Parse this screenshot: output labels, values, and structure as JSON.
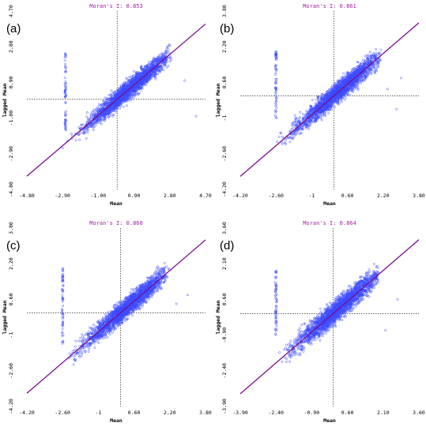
{
  "colors": {
    "points": "#3c4bff",
    "regression_line": "#7a0f8c",
    "title": "#a020a0",
    "guides": "#000000",
    "text": "#000000"
  },
  "chart_data": [
    {
      "type": "scatter",
      "panel_label": "(a)",
      "title": "Moran's I: 0.853",
      "xlabel": "Mean",
      "ylabel": "lagged Mean",
      "xlim": [
        -4.8,
        4.7
      ],
      "ylim": [
        -4.8,
        4.7
      ],
      "x_ticks": [
        "-4.80",
        "-2.90",
        "-1.00",
        "0.90",
        "2.80",
        "4.70"
      ],
      "y_ticks": [
        "-4.80",
        "-2.90",
        "-1.00",
        "0.90",
        "2.80",
        "4.70"
      ],
      "mean_x": 0.0,
      "mean_y": 0.0,
      "slope": 0.853,
      "cloud": {
        "x_min": -2.8,
        "x_max": 2.9,
        "spread": 0.5
      },
      "stripe": {
        "x": -2.75,
        "y_min": -1.7,
        "y_max": 2.5
      },
      "outliers": [
        [
          4.2,
          -0.9
        ],
        [
          3.6,
          1.0
        ],
        [
          -2.9,
          -2.6
        ]
      ]
    },
    {
      "type": "scatter",
      "panel_label": "(b)",
      "title": "Moran's I: 0.861",
      "xlabel": "Mean",
      "ylabel": "lagged Mean",
      "xlim": [
        -4.2,
        3.8
      ],
      "ylim": [
        -4.2,
        3.8
      ],
      "x_ticks": [
        "-4.20",
        "-2.60",
        "-1",
        "0.60",
        "2.20",
        "3.80"
      ],
      "y_ticks": [
        "-4.20",
        "-2.60",
        "-1",
        "0.60",
        "2.20",
        "3.80"
      ],
      "mean_x": 0.0,
      "mean_y": 0.0,
      "slope": 0.861,
      "cloud": {
        "x_min": -2.7,
        "x_max": 2.2,
        "spread": 0.45
      },
      "stripe": {
        "x": -2.6,
        "y_min": -1.0,
        "y_max": 2.0
      },
      "outliers": [
        [
          3.0,
          0.8
        ],
        [
          2.8,
          -0.6
        ],
        [
          2.4,
          0.3
        ]
      ]
    },
    {
      "type": "scatter",
      "panel_label": "(c)",
      "title": "Moran's I: 0.860",
      "xlabel": "Mean",
      "ylabel": "lagged Mean",
      "xlim": [
        -4.2,
        3.8
      ],
      "ylim": [
        -4.2,
        3.8
      ],
      "x_ticks": [
        "-4.20",
        "-2.60",
        "-1",
        "0.60",
        "2.20",
        "3.80"
      ],
      "y_ticks": [
        "-4.20",
        "-2.60",
        "-1",
        "0.60",
        "2.20",
        "3.80"
      ],
      "mean_x": 0.0,
      "mean_y": 0.0,
      "slope": 0.86,
      "cloud": {
        "x_min": -2.7,
        "x_max": 2.2,
        "spread": 0.45
      },
      "stripe": {
        "x": -2.6,
        "y_min": -1.6,
        "y_max": 2.1
      },
      "outliers": [
        [
          3.0,
          0.8
        ],
        [
          2.5,
          0.4
        ]
      ]
    },
    {
      "type": "scatter",
      "panel_label": "(d)",
      "title": "Moran's I: 0.864",
      "xlabel": "Mean",
      "ylabel": "lagged Mean",
      "xlim": [
        -3.9,
        3.6
      ],
      "ylim": [
        -3.9,
        3.6
      ],
      "x_ticks": [
        "-3.90",
        "-2.40",
        "-0.90",
        "0.60",
        "2.10",
        "3.60"
      ],
      "y_ticks": [
        "-3.90",
        "-2.40",
        "-0.90",
        "0.60",
        "2.10",
        "3.60"
      ],
      "mean_x": 0.0,
      "mean_y": 0.0,
      "slope": 0.864,
      "cloud": {
        "x_min": -2.5,
        "x_max": 2.0,
        "spread": 0.45
      },
      "stripe": {
        "x": -2.4,
        "y_min": -0.9,
        "y_max": 1.9
      },
      "outliers": [
        [
          2.7,
          0.6
        ],
        [
          2.2,
          -0.7
        ]
      ]
    }
  ]
}
